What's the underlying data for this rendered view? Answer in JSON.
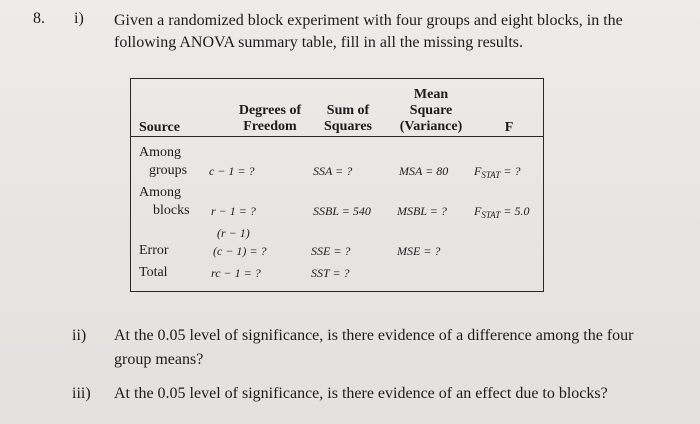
{
  "question": {
    "number": "8.",
    "part_i_label": "i)",
    "part_i_text": "Given a randomized block experiment with four groups and eight blocks, in the following ANOVA summary table, fill in all the missing results.",
    "part_ii_label": "ii)",
    "part_ii_text": "At the 0.05 level of significance, is there evidence of a difference among the four group means?",
    "part_iii_label": "iii)",
    "part_iii_text": "At the 0.05 level of significance, is there evidence of an effect due to blocks?"
  },
  "table": {
    "headers": {
      "source": "Source",
      "df_line1": "Degrees of",
      "df_line2": "Freedom",
      "ss_line1": "Sum of",
      "ss_line2": "Squares",
      "ms_line1": "Mean",
      "ms_line2": "Square",
      "ms_line3": "(Variance)",
      "f": "F"
    },
    "rows": {
      "among_groups": {
        "source_line1": "Among",
        "source_line2": "groups",
        "df": "c − 1 = ?",
        "ss": "SSA = ?",
        "ms": "MSA = 80",
        "f_prefix": "F",
        "f_sub": "STAT",
        "f_value": " = ?"
      },
      "among_blocks": {
        "source_line1": "Among",
        "source_line2": "blocks",
        "df": "r − 1 = ?",
        "ss": "SSBL = 540",
        "ms": "MSBL = ?",
        "f_prefix": "F",
        "f_sub": "STAT",
        "f_value": " = 5.0"
      },
      "error": {
        "source": "Error",
        "df_line1": "(r − 1)",
        "df_line2": "(c − 1) = ?",
        "ss": "SSE = ?",
        "ms": "MSE = ?"
      },
      "total": {
        "source": "Total",
        "df": "rc − 1 = ?",
        "ss": "SST = ?"
      }
    }
  }
}
